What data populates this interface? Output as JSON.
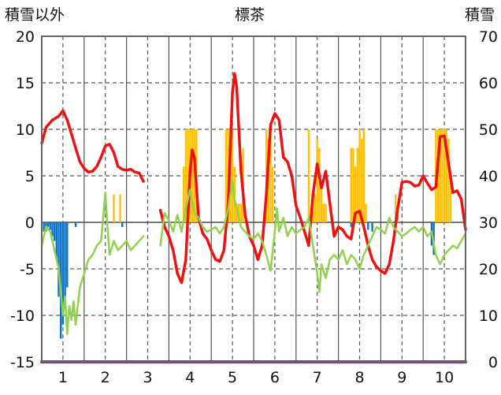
{
  "header": {
    "left_axis_title": "積雪以外",
    "title": "標茶",
    "right_axis_title": "積雪"
  },
  "colors": {
    "red_line": "#ee1111",
    "green_line": "#92d050",
    "orange_bars": "#ffc000",
    "blue_bars": "#1273c4",
    "purple_baseline": "#7030a0",
    "frame": "#666666",
    "grid": "#555555"
  },
  "chart_data": {
    "type": "line",
    "title": "標茶",
    "x_ticks": [
      "1",
      "2",
      "3",
      "4",
      "5",
      "6",
      "7",
      "8",
      "9",
      "10"
    ],
    "x_range": [
      0.5,
      10.5
    ],
    "y_left": {
      "label": "積雪以外",
      "range": [
        -15,
        20
      ],
      "ticks": [
        "-15",
        "-10",
        "-5",
        "0",
        "5",
        "10",
        "15",
        "20"
      ]
    },
    "y_right": {
      "label": "積雪",
      "range": [
        0,
        70
      ],
      "ticks": [
        "0",
        "10",
        "20",
        "30",
        "40",
        "50",
        "60",
        "70"
      ]
    },
    "grid": true,
    "series": [
      {
        "axis": "left",
        "mark": "line",
        "color": "#ee1111",
        "points": [
          [
            0.5,
            8.5
          ],
          [
            0.6,
            10.2
          ],
          [
            0.75,
            11.0
          ],
          [
            0.9,
            11.4
          ],
          [
            1.0,
            12.0
          ],
          [
            1.1,
            11.0
          ],
          [
            1.2,
            9.5
          ],
          [
            1.3,
            8.0
          ],
          [
            1.4,
            6.5
          ],
          [
            1.5,
            5.8
          ],
          [
            1.6,
            5.4
          ],
          [
            1.7,
            5.5
          ],
          [
            1.8,
            6.0
          ],
          [
            1.9,
            7.0
          ],
          [
            2.0,
            8.2
          ],
          [
            2.1,
            8.4
          ],
          [
            2.2,
            7.5
          ],
          [
            2.3,
            6.0
          ],
          [
            2.4,
            5.7
          ],
          [
            2.5,
            5.6
          ],
          [
            2.6,
            5.7
          ],
          [
            2.7,
            5.4
          ],
          [
            2.8,
            5.3
          ],
          [
            2.9,
            4.4
          ],
          null,
          [
            3.3,
            1.3
          ],
          [
            3.4,
            -0.5
          ],
          [
            3.5,
            -1.5
          ],
          [
            3.6,
            -3.0
          ],
          [
            3.7,
            -5.5
          ],
          [
            3.8,
            -6.5
          ],
          [
            3.9,
            -4.0
          ],
          [
            4.0,
            5.5
          ],
          [
            4.05,
            7.8
          ],
          [
            4.1,
            7.0
          ],
          [
            4.2,
            0.5
          ],
          [
            4.3,
            -1.2
          ],
          [
            4.4,
            -1.8
          ],
          [
            4.5,
            -3.0
          ],
          [
            4.6,
            -4.0
          ],
          [
            4.7,
            -4.2
          ],
          [
            4.8,
            -3.0
          ],
          [
            4.9,
            2.0
          ],
          [
            5.0,
            14.0
          ],
          [
            5.05,
            16.0
          ],
          [
            5.1,
            14.5
          ],
          [
            5.2,
            5.5
          ],
          [
            5.3,
            0.8
          ],
          [
            5.4,
            -1.5
          ],
          [
            5.5,
            -2.5
          ],
          [
            5.6,
            -4.0
          ],
          [
            5.7,
            -2.5
          ],
          [
            5.8,
            3.0
          ],
          [
            5.9,
            10.5
          ],
          [
            6.0,
            11.7
          ],
          [
            6.1,
            11.0
          ],
          [
            6.2,
            7.0
          ],
          [
            6.3,
            6.5
          ],
          [
            6.4,
            5.0
          ],
          [
            6.5,
            1.8
          ],
          [
            6.6,
            0.5
          ],
          [
            6.7,
            -1.0
          ],
          [
            6.8,
            -2.5
          ],
          [
            6.9,
            3.0
          ],
          [
            7.0,
            6.3
          ],
          [
            7.1,
            3.7
          ],
          [
            7.2,
            5.5
          ],
          [
            7.3,
            2.0
          ],
          [
            7.4,
            -1.5
          ],
          [
            7.5,
            -0.5
          ],
          [
            7.6,
            -0.8
          ],
          [
            7.7,
            -1.5
          ],
          [
            7.8,
            -1.8
          ],
          [
            7.9,
            1.0
          ],
          [
            8.0,
            1.2
          ],
          [
            8.1,
            -0.5
          ],
          [
            8.2,
            -2.5
          ],
          [
            8.3,
            -4.0
          ],
          [
            8.4,
            -4.8
          ],
          [
            8.5,
            -5.2
          ],
          [
            8.6,
            -5.5
          ],
          [
            8.7,
            -4.5
          ],
          [
            8.8,
            -2.0
          ],
          [
            8.9,
            1.5
          ],
          [
            9.0,
            4.3
          ],
          [
            9.1,
            4.4
          ],
          [
            9.2,
            4.3
          ],
          [
            9.3,
            3.9
          ],
          [
            9.4,
            4.0
          ],
          [
            9.5,
            5.0
          ],
          [
            9.6,
            4.2
          ],
          [
            9.7,
            3.5
          ],
          [
            9.8,
            3.8
          ],
          [
            9.9,
            9.2
          ],
          [
            10.0,
            9.3
          ],
          [
            10.1,
            6.3
          ],
          [
            10.2,
            3.2
          ],
          [
            10.3,
            3.4
          ],
          [
            10.4,
            2.5
          ],
          [
            10.5,
            -0.8
          ]
        ]
      },
      {
        "axis": "left",
        "mark": "line",
        "color": "#92d050",
        "points": [
          [
            0.5,
            -2.5
          ],
          [
            0.6,
            -0.5
          ],
          [
            0.7,
            -1.0
          ],
          [
            0.8,
            -3.0
          ],
          [
            0.9,
            -5.0
          ],
          [
            0.95,
            -7.5
          ],
          [
            1.0,
            -10.0
          ],
          [
            1.05,
            -8.0
          ],
          [
            1.1,
            -12.0
          ],
          [
            1.15,
            -9.0
          ],
          [
            1.2,
            -10.5
          ],
          [
            1.25,
            -8.5
          ],
          [
            1.3,
            -11.0
          ],
          [
            1.4,
            -7.0
          ],
          [
            1.5,
            -5.5
          ],
          [
            1.6,
            -4.0
          ],
          [
            1.7,
            -3.5
          ],
          [
            1.8,
            -2.5
          ],
          [
            1.9,
            -2.0
          ],
          [
            2.0,
            3.2
          ],
          [
            2.05,
            -0.5
          ],
          [
            2.1,
            -3.5
          ],
          [
            2.2,
            -2.0
          ],
          [
            2.3,
            -3.0
          ],
          [
            2.4,
            -2.5
          ],
          [
            2.5,
            -2.0
          ],
          [
            2.6,
            -3.0
          ],
          [
            2.7,
            -2.5
          ],
          [
            2.8,
            -2.0
          ],
          [
            2.9,
            -1.5
          ],
          null,
          [
            3.3,
            -2.5
          ],
          [
            3.4,
            1.0
          ],
          [
            3.5,
            0.2
          ],
          [
            3.6,
            -1.0
          ],
          [
            3.7,
            0.8
          ],
          [
            3.8,
            -1.0
          ],
          [
            3.9,
            1.5
          ],
          [
            4.0,
            3.5
          ],
          [
            4.1,
            1.0
          ],
          [
            4.2,
            0.5
          ],
          [
            4.3,
            -0.5
          ],
          [
            4.4,
            -1.0
          ],
          [
            4.5,
            -0.8
          ],
          [
            4.6,
            -0.5
          ],
          [
            4.7,
            -1.2
          ],
          [
            4.8,
            -0.5
          ],
          [
            4.9,
            1.5
          ],
          [
            5.0,
            4.5
          ],
          [
            5.05,
            2.5
          ],
          [
            5.1,
            1.5
          ],
          [
            5.2,
            -0.5
          ],
          [
            5.3,
            -1.0
          ],
          [
            5.4,
            -1.5
          ],
          [
            5.5,
            -1.8
          ],
          [
            5.6,
            -1.2
          ],
          [
            5.7,
            -2.0
          ],
          [
            5.8,
            -3.5
          ],
          [
            5.9,
            -5.2
          ],
          [
            6.0,
            -1.0
          ],
          [
            6.05,
            1.5
          ],
          [
            6.1,
            -1.0
          ],
          [
            6.2,
            0.5
          ],
          [
            6.3,
            -1.5
          ],
          [
            6.4,
            -0.5
          ],
          [
            6.5,
            -1.2
          ],
          [
            6.6,
            -0.8
          ],
          [
            6.7,
            -0.5
          ],
          [
            6.8,
            0.5
          ],
          [
            6.9,
            -2.5
          ],
          [
            7.0,
            -5.5
          ],
          [
            7.05,
            -7.5
          ],
          [
            7.1,
            -4.5
          ],
          [
            7.2,
            -6.0
          ],
          [
            7.3,
            -4.0
          ],
          [
            7.4,
            -3.5
          ],
          [
            7.5,
            -4.0
          ],
          [
            7.6,
            -3.0
          ],
          [
            7.7,
            -4.5
          ],
          [
            7.8,
            -3.5
          ],
          [
            7.9,
            -4.0
          ],
          [
            8.0,
            -5.0
          ],
          [
            8.1,
            -3.5
          ],
          [
            8.2,
            -2.5
          ],
          [
            8.3,
            -1.5
          ],
          [
            8.4,
            -0.5
          ],
          [
            8.5,
            -0.8
          ],
          [
            8.6,
            -1.2
          ],
          [
            8.7,
            0.5
          ],
          [
            8.8,
            -0.5
          ],
          [
            8.9,
            -1.0
          ],
          [
            9.0,
            -1.5
          ],
          [
            9.1,
            -1.2
          ],
          [
            9.2,
            -0.8
          ],
          [
            9.3,
            -0.5
          ],
          [
            9.4,
            -1.0
          ],
          [
            9.5,
            -0.5
          ],
          [
            9.6,
            -1.5
          ],
          [
            9.7,
            -1.0
          ],
          [
            9.8,
            -3.5
          ],
          [
            9.9,
            -4.5
          ],
          [
            10.0,
            -3.5
          ],
          [
            10.1,
            -3.0
          ],
          [
            10.2,
            -2.5
          ],
          [
            10.3,
            -2.8
          ],
          [
            10.4,
            -2.0
          ],
          [
            10.5,
            -1.2
          ]
        ]
      },
      {
        "axis": "right",
        "mark": "bars",
        "color": "#ffc000",
        "bars": [
          [
            2.2,
            36
          ],
          [
            2.35,
            36
          ],
          [
            3.85,
            42
          ],
          [
            3.9,
            50
          ],
          [
            3.95,
            50
          ],
          [
            4.0,
            50
          ],
          [
            4.05,
            50
          ],
          [
            4.1,
            50
          ],
          [
            4.15,
            50
          ],
          [
            4.85,
            50
          ],
          [
            4.9,
            50
          ],
          [
            4.95,
            50
          ],
          [
            5.0,
            50
          ],
          [
            5.05,
            42
          ],
          [
            5.1,
            34
          ],
          [
            5.15,
            34
          ],
          [
            5.2,
            34
          ],
          [
            5.25,
            46
          ],
          [
            5.8,
            50
          ],
          [
            5.85,
            48
          ],
          [
            5.9,
            50
          ],
          [
            5.95,
            42
          ],
          [
            6.8,
            50
          ],
          [
            6.9,
            36
          ],
          [
            6.95,
            36
          ],
          [
            7.0,
            48
          ],
          [
            7.05,
            46
          ],
          [
            7.1,
            38
          ],
          [
            7.15,
            34
          ],
          [
            7.2,
            34
          ],
          [
            7.8,
            46
          ],
          [
            7.85,
            46
          ],
          [
            7.9,
            42
          ],
          [
            7.95,
            46
          ],
          [
            8.0,
            50
          ],
          [
            8.05,
            48
          ],
          [
            8.1,
            50
          ],
          [
            8.15,
            34
          ],
          [
            8.85,
            36
          ],
          [
            8.9,
            32
          ],
          [
            9.8,
            50
          ],
          [
            9.85,
            50
          ],
          [
            9.9,
            50
          ],
          [
            9.95,
            50
          ],
          [
            10.0,
            50
          ],
          [
            10.05,
            50
          ],
          [
            10.1,
            48
          ],
          [
            10.15,
            40
          ]
        ]
      },
      {
        "axis": "left",
        "mark": "bars",
        "color": "#1273c4",
        "bars": [
          [
            0.55,
            -1.0
          ],
          [
            0.6,
            -1.0
          ],
          [
            0.65,
            -0.5
          ],
          [
            0.7,
            -0.8
          ],
          [
            0.75,
            -1.5
          ],
          [
            0.8,
            -2.0
          ],
          [
            0.85,
            -4.0
          ],
          [
            0.9,
            -8.0
          ],
          [
            0.95,
            -12.5
          ],
          [
            1.0,
            -11.0
          ],
          [
            1.05,
            -8.0
          ],
          [
            1.1,
            -7.0
          ],
          [
            1.3,
            -0.5
          ],
          [
            2.4,
            -0.5
          ],
          [
            7.8,
            -0.5
          ],
          [
            8.2,
            -0.8
          ],
          [
            8.3,
            -1.0
          ],
          [
            9.7,
            -2.5
          ],
          [
            9.75,
            -3.5
          ]
        ]
      },
      {
        "axis": "left",
        "mark": "baseline",
        "color": "#7030a0",
        "points": [
          [
            0.5,
            -15
          ],
          [
            10.5,
            -15
          ]
        ]
      }
    ]
  }
}
